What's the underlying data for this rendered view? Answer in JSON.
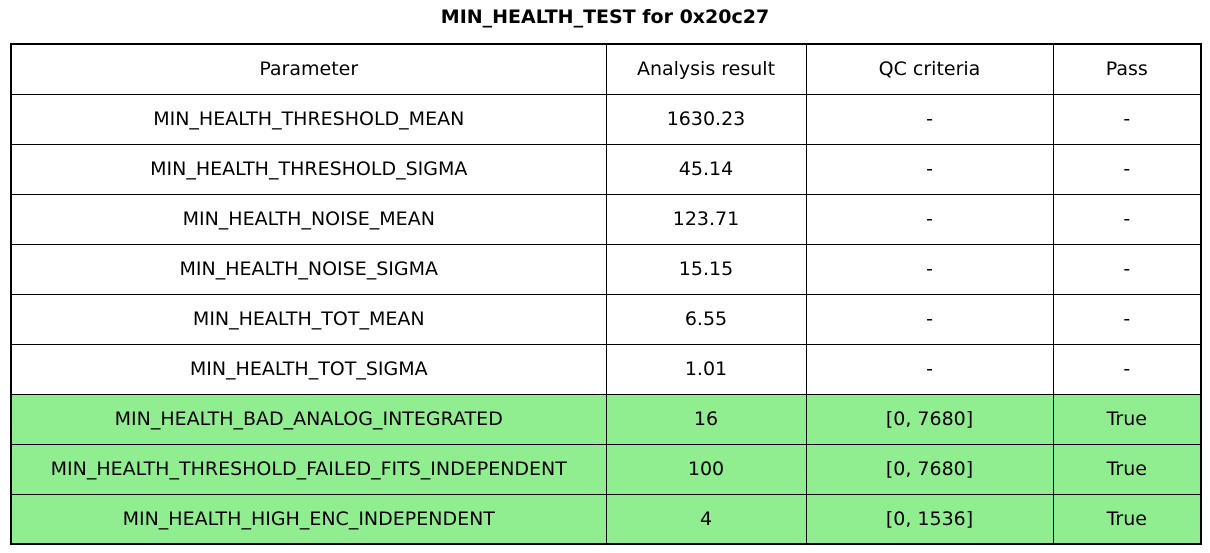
{
  "title": "MIN_HEALTH_TEST for 0x20c27",
  "colors": {
    "highlight_green": "#90ee90",
    "row_white": "#ffffff",
    "border_black": "#000000",
    "text_black": "#000000"
  },
  "chart_data": {
    "type": "table",
    "title": "MIN_HEALTH_TEST for 0x20c27",
    "columns": [
      "Parameter",
      "Analysis result",
      "QC criteria",
      "Pass"
    ],
    "rows": [
      {
        "cells": [
          "MIN_HEALTH_THRESHOLD_MEAN",
          "1630.23",
          "-",
          "-"
        ],
        "highlight": false
      },
      {
        "cells": [
          "MIN_HEALTH_THRESHOLD_SIGMA",
          "45.14",
          "-",
          "-"
        ],
        "highlight": false
      },
      {
        "cells": [
          "MIN_HEALTH_NOISE_MEAN",
          "123.71",
          "-",
          "-"
        ],
        "highlight": false
      },
      {
        "cells": [
          "MIN_HEALTH_NOISE_SIGMA",
          "15.15",
          "-",
          "-"
        ],
        "highlight": false
      },
      {
        "cells": [
          "MIN_HEALTH_TOT_MEAN",
          "6.55",
          "-",
          "-"
        ],
        "highlight": false
      },
      {
        "cells": [
          "MIN_HEALTH_TOT_SIGMA",
          "1.01",
          "-",
          "-"
        ],
        "highlight": false
      },
      {
        "cells": [
          "MIN_HEALTH_BAD_ANALOG_INTEGRATED",
          "16",
          "[0, 7680]",
          "True"
        ],
        "highlight": true
      },
      {
        "cells": [
          "MIN_HEALTH_THRESHOLD_FAILED_FITS_INDEPENDENT",
          "100",
          "[0, 7680]",
          "True"
        ],
        "highlight": true
      },
      {
        "cells": [
          "MIN_HEALTH_HIGH_ENC_INDEPENDENT",
          "4",
          "[0, 1536]",
          "True"
        ],
        "highlight": true
      }
    ],
    "layout": {
      "legend": "none",
      "grid": "full-cell-borders",
      "highlight_rule": "rows with QC criteria have green background when Pass is True"
    }
  }
}
